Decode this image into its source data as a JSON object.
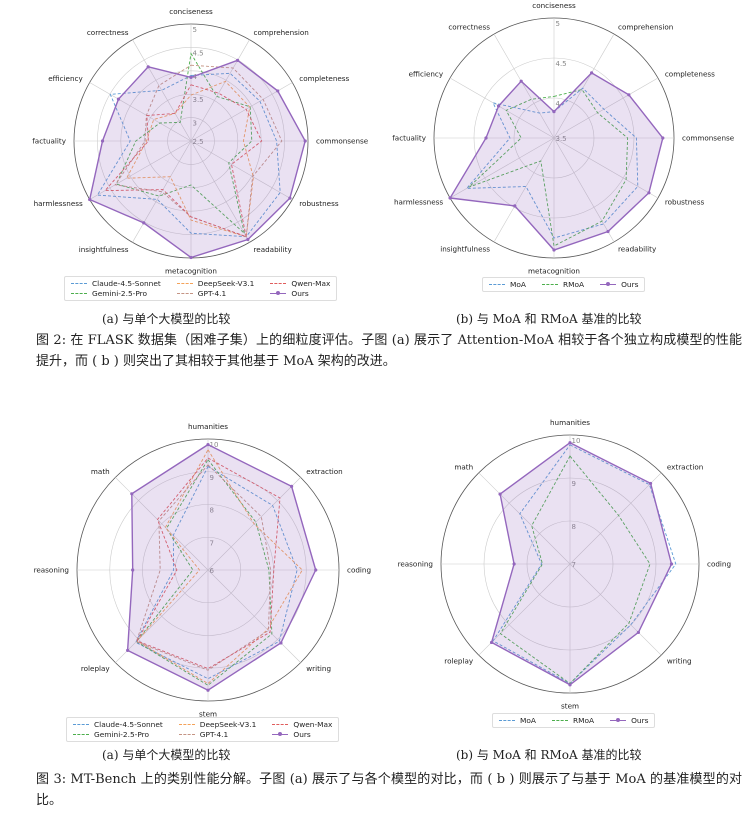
{
  "colors": {
    "Claude-4.5-Sonnet": "#5b9bd5",
    "Gemini-2.5-Pro": "#4cae4c",
    "DeepSeek-V3.1": "#f4a259",
    "GPT-4.1": "#c49484",
    "Qwen-Max": "#e05c5c",
    "MoA": "#5b9bd5",
    "RMoA": "#4cae4c",
    "Ours": "#9467bd",
    "ours_fill": "rgba(148,103,189,0.2)"
  },
  "figure2": {
    "subcaption_a": "(a) 与单个大模型的比较",
    "subcaption_b": "(b) 与 MoA 和 RMoA 基准的比较",
    "caption": "图 2: 在 FLASK 数据集（困难子集）上的细粒度评估。子图 (a) 展示了 Attention-MoA 相较于各个独立构成模型的性能提升，而 ( b ) 则突出了其相较于其他基于 MoA 架构的改进。"
  },
  "figure3": {
    "subcaption_a": "(a) 与单个大模型的比较",
    "subcaption_b": "(b) 与 MoA 和 RMoA 基准的比较",
    "caption": "图 3: MT-Bench 上的类别性能分解。子图 (a) 展示了与各个模型的对比，而 ( b ) 则展示了与基于 MoA 的基准模型的对比。"
  },
  "chart_data": [
    {
      "type": "radar",
      "id": "fig2a",
      "axes": [
        "conciseness",
        "comprehension",
        "completeness",
        "commonsense",
        "robustness",
        "readability",
        "metacognition",
        "insightfulness",
        "harmlessness",
        "factuality",
        "efficiency",
        "correctness"
      ],
      "rlim": [
        2.5,
        5
      ],
      "ticks": [
        "2.5",
        "3",
        "3.5",
        "4",
        "4.5",
        "5"
      ],
      "tick_values": [
        2.5,
        3,
        3.5,
        4,
        4.5,
        5
      ],
      "legend": [
        "Claude-4.5-Sonnet",
        "Gemini-2.5-Pro",
        "DeepSeek-V3.1",
        "GPT-4.1",
        "Qwen-Max",
        "Ours"
      ],
      "series": [
        {
          "name": "Claude-4.5-Sonnet",
          "values": [
            3.9,
            4.17,
            4.2,
            4.33,
            4.7,
            4.86,
            4.47,
            3.94,
            4.81,
            3.8,
            4.49,
            3.75
          ]
        },
        {
          "name": "Gemini-2.5-Pro",
          "values": [
            4.37,
            3.6,
            3.96,
            3.8,
            3.43,
            4.78,
            3.44,
            3.86,
            4.34,
            3.68,
            3.27,
            2.96
          ]
        },
        {
          "name": "DeepSeek-V3.1",
          "values": [
            3.48,
            3.97,
            3.95,
            3.62,
            4.04,
            4.86,
            4.19,
            3.38,
            4.09,
            3.45,
            3.42,
            3.18
          ]
        },
        {
          "name": "GPT-4.1",
          "values": [
            4.12,
            4.3,
            4.28,
            4.44,
            4.02,
            4.86,
            4.12,
            3.75,
            4.37,
            3.48,
            3.6,
            3.87
          ]
        },
        {
          "name": "Qwen-Max",
          "values": [
            3.7,
            3.68,
            3.86,
            4.01,
            3.5,
            4.86,
            4.12,
            3.7,
            4.62,
            3.41,
            3.59,
            3.18
          ]
        },
        {
          "name": "Ours",
          "values": [
            3.86,
            4.49,
            4.64,
            4.94,
            4.94,
            4.93,
            4.99,
            4.52,
            5.0,
            4.39,
            4.29,
            4.33
          ]
        }
      ]
    },
    {
      "type": "radar",
      "id": "fig2b",
      "axes": [
        "conciseness",
        "comprehension",
        "completeness",
        "commonsense",
        "robustness",
        "readability",
        "metacognition",
        "insightfulness",
        "harmlessness",
        "factuality",
        "efficiency",
        "correctness"
      ],
      "rlim": [
        3.5,
        5
      ],
      "ticks": [
        "3.5",
        "4",
        "4.5",
        "5"
      ],
      "tick_values": [
        3.5,
        4,
        4.5,
        5
      ],
      "legend": [
        "MoA",
        "RMoA",
        "Ours"
      ],
      "series": [
        {
          "name": "MoA",
          "values": [
            3.83,
            4.22,
            4.22,
            4.53,
            4.71,
            4.74,
            4.75,
            4.2,
            4.76,
            4.05,
            4.38,
            3.86
          ]
        },
        {
          "name": "RMoA",
          "values": [
            4.02,
            4.2,
            4.13,
            4.42,
            4.54,
            4.7,
            4.85,
            3.83,
            4.73,
            3.91,
            4.19,
            4.06
          ]
        },
        {
          "name": "Ours",
          "values": [
            3.83,
            4.44,
            4.58,
            4.86,
            4.87,
            4.85,
            4.9,
            4.48,
            5.0,
            4.35,
            4.3,
            4.32
          ]
        }
      ]
    },
    {
      "type": "radar",
      "id": "fig3a",
      "axes": [
        "humanities",
        "extraction",
        "coding",
        "writing",
        "stem",
        "roleplay",
        "reasoning",
        "math"
      ],
      "rlim": [
        6,
        10
      ],
      "ticks": [
        "6",
        "7",
        "8",
        "9",
        "10"
      ],
      "tick_values": [
        6,
        7,
        8,
        9,
        10
      ],
      "legend": [
        "Claude-4.5-Sonnet",
        "Gemini-2.5-Pro",
        "DeepSeek-V3.1",
        "GPT-4.1",
        "Qwen-Max",
        "Ours"
      ],
      "series": [
        {
          "name": "Claude-4.5-Sonnet",
          "values": [
            9.16,
            8.79,
            8.72,
            9.08,
            9.32,
            9.12,
            7.05,
            7.5
          ]
        },
        {
          "name": "Gemini-2.5-Pro",
          "values": [
            9.37,
            8.07,
            7.86,
            8.76,
            9.52,
            9.09,
            6.46,
            7.79
          ]
        },
        {
          "name": "DeepSeek-V3.1",
          "values": [
            9.67,
            7.99,
            8.88,
            8.57,
            9.47,
            9.06,
            6.26,
            7.84
          ]
        },
        {
          "name": "GPT-4.1",
          "values": [
            9.21,
            8.3,
            7.91,
            8.61,
            9.06,
            9.09,
            7.46,
            8.12
          ]
        },
        {
          "name": "Qwen-Max",
          "values": [
            9.42,
            9.11,
            8.01,
            8.68,
            9.01,
            9.06,
            6.95,
            8.18
          ]
        },
        {
          "name": "Ours",
          "values": [
            9.83,
            9.61,
            9.29,
            9.15,
            9.67,
            9.47,
            8.3,
            9.29
          ]
        }
      ]
    },
    {
      "type": "radar",
      "id": "fig3b",
      "axes": [
        "humanities",
        "extraction",
        "coding",
        "writing",
        "stem",
        "roleplay",
        "reasoning",
        "math"
      ],
      "rlim": [
        7,
        10
      ],
      "ticks": [
        "7",
        "8",
        "9",
        "10"
      ],
      "tick_values": [
        7,
        8,
        9,
        10
      ],
      "legend": [
        "MoA",
        "RMoA",
        "Ours"
      ],
      "series": [
        {
          "name": "MoA",
          "values": [
            9.77,
            9.61,
            9.46,
            9.0,
            9.78,
            9.53,
            7.66,
            8.65
          ]
        },
        {
          "name": "RMoA",
          "values": [
            9.51,
            8.6,
            8.86,
            8.94,
            9.78,
            9.29,
            7.64,
            8.26
          ]
        },
        {
          "name": "Ours",
          "values": [
            9.82,
            9.65,
            9.36,
            9.25,
            9.81,
            9.58,
            8.3,
            9.3
          ]
        }
      ]
    }
  ]
}
